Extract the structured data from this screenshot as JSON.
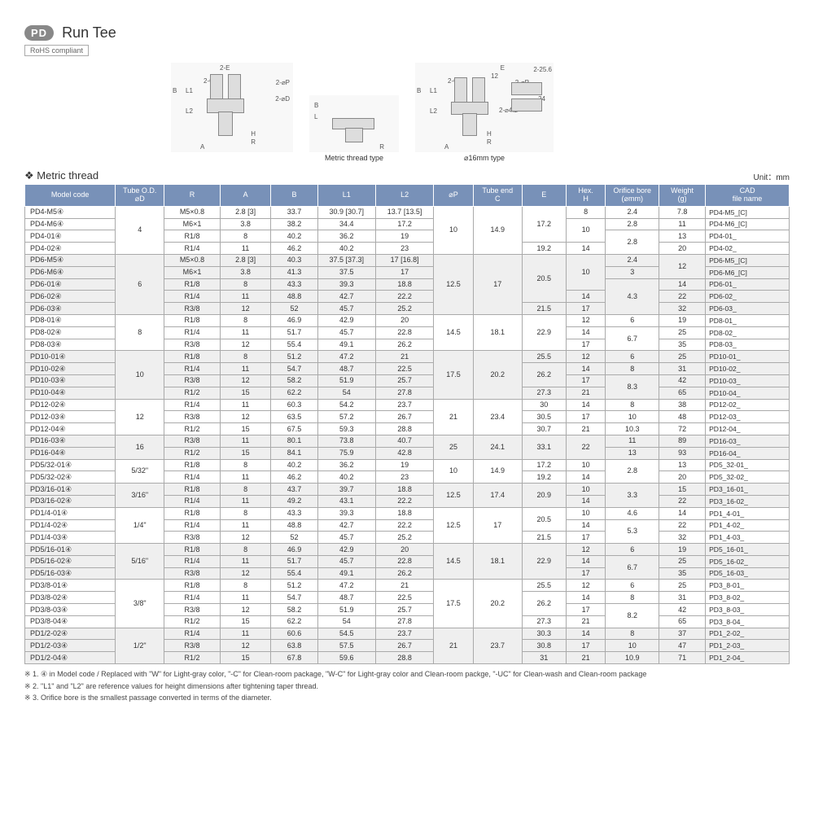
{
  "header": {
    "badge": "PD",
    "title": "Run Tee",
    "rohs": "RoHS compliant"
  },
  "diagram_labels": {
    "d1": "",
    "d2": "Metric thread type",
    "d3": "⌀16mm type"
  },
  "diagram_annot": {
    "a1": "2-E",
    "a2": "2-C",
    "a3": "2-⌀P",
    "a4": "2-⌀D",
    "a5": "B",
    "a6": "L1",
    "a7": "L2",
    "a8": "A",
    "a9": "H",
    "a10": "R",
    "a11": "L",
    "a12": "E",
    "a13": "12",
    "a14": "2-⌀4.2",
    "a15": "24",
    "a16": "2-25.6"
  },
  "section_title": "Metric thread",
  "unit_label": "Unit：mm",
  "columns": [
    "Model code",
    "Tube O.D.\n⌀D",
    "R",
    "A",
    "B",
    "L1",
    "L2",
    "⌀P",
    "Tube end\nC",
    "E",
    "Hex.\nH",
    "Orifice bore\n(⌀mm)",
    "Weight\n(g)",
    "CAD\nfile name"
  ],
  "col_widths": [
    "78",
    "42",
    "48",
    "44",
    "40",
    "50",
    "50",
    "34",
    "42",
    "38",
    "34",
    "46",
    "40",
    "72"
  ],
  "rows": [
    {
      "g": 0,
      "model": "PD4-M5④",
      "od": "4",
      "od_rs": 4,
      "r": "M5×0.8",
      "a": "2.8 [3]",
      "b": "33.7",
      "l1": "30.9 [30.7]",
      "l2": "13.7 [13.5]",
      "op": "10",
      "op_rs": 4,
      "c": "14.9",
      "c_rs": 4,
      "e": "17.2",
      "e_rs": 3,
      "h": "8",
      "ob": "2.4",
      "w": "7.8",
      "cad": "PD4-M5_[C]"
    },
    {
      "g": 0,
      "model": "PD4-M6④",
      "r": "M6×1",
      "a": "3.8",
      "b": "38.2",
      "l1": "34.4",
      "l2": "17.2",
      "h": "10",
      "h_rs": 2,
      "ob": "2.8",
      "w": "11",
      "cad": "PD4-M6_[C]"
    },
    {
      "g": 0,
      "model": "PD4-01④",
      "r": "R1/8",
      "a": "8",
      "b": "40.2",
      "l1": "36.2",
      "l2": "19",
      "ob": "2.8",
      "ob_rs": 2,
      "w": "13",
      "cad": "PD4-01_"
    },
    {
      "g": 0,
      "model": "PD4-02④",
      "r": "R1/4",
      "a": "11",
      "b": "46.2",
      "l1": "40.2",
      "l2": "23",
      "e": "19.2",
      "h": "14",
      "w": "20",
      "cad": "PD4-02_"
    },
    {
      "g": 1,
      "model": "PD6-M5④",
      "od": "6",
      "od_rs": 5,
      "r": "M5×0.8",
      "a": "2.8 [3]",
      "b": "40.3",
      "l1": "37.5 [37.3]",
      "l2": "17 [16.8]",
      "op": "12.5",
      "op_rs": 5,
      "c": "17",
      "c_rs": 5,
      "e": "20.5",
      "e_rs": 4,
      "h": "10",
      "h_rs": 3,
      "ob": "2.4",
      "w": "12",
      "w_rs": 2,
      "cad": "PD6-M5_[C]"
    },
    {
      "g": 1,
      "model": "PD6-M6④",
      "r": "M6×1",
      "a": "3.8",
      "b": "41.3",
      "l1": "37.5",
      "l2": "17",
      "ob": "3",
      "cad": "PD6-M6_[C]"
    },
    {
      "g": 1,
      "model": "PD6-01④",
      "r": "R1/8",
      "a": "8",
      "b": "43.3",
      "l1": "39.3",
      "l2": "18.8",
      "ob": "4.3",
      "ob_rs": 3,
      "w": "14",
      "cad": "PD6-01_"
    },
    {
      "g": 1,
      "model": "PD6-02④",
      "r": "R1/4",
      "a": "11",
      "b": "48.8",
      "l1": "42.7",
      "l2": "22.2",
      "h": "14",
      "w": "22",
      "cad": "PD6-02_"
    },
    {
      "g": 1,
      "model": "PD6-03④",
      "r": "R3/8",
      "a": "12",
      "b": "52",
      "l1": "45.7",
      "l2": "25.2",
      "e": "21.5",
      "h": "17",
      "w": "32",
      "cad": "PD6-03_"
    },
    {
      "g": 0,
      "model": "PD8-01④",
      "od": "8",
      "od_rs": 3,
      "r": "R1/8",
      "a": "8",
      "b": "46.9",
      "l1": "42.9",
      "l2": "20",
      "op": "14.5",
      "op_rs": 3,
      "c": "18.1",
      "c_rs": 3,
      "e": "22.9",
      "e_rs": 3,
      "h": "12",
      "ob": "6",
      "w": "19",
      "cad": "PD8-01_"
    },
    {
      "g": 0,
      "model": "PD8-02④",
      "r": "R1/4",
      "a": "11",
      "b": "51.7",
      "l1": "45.7",
      "l2": "22.8",
      "h": "14",
      "ob": "6.7",
      "ob_rs": 2,
      "w": "25",
      "cad": "PD8-02_"
    },
    {
      "g": 0,
      "model": "PD8-03④",
      "r": "R3/8",
      "a": "12",
      "b": "55.4",
      "l1": "49.1",
      "l2": "26.2",
      "h": "17",
      "w": "35",
      "cad": "PD8-03_"
    },
    {
      "g": 1,
      "model": "PD10-01④",
      "od": "10",
      "od_rs": 4,
      "r": "R1/8",
      "a": "8",
      "b": "51.2",
      "l1": "47.2",
      "l2": "21",
      "op": "17.5",
      "op_rs": 4,
      "c": "20.2",
      "c_rs": 4,
      "e": "25.5",
      "h": "12",
      "ob": "6",
      "w": "25",
      "cad": "PD10-01_"
    },
    {
      "g": 1,
      "model": "PD10-02④",
      "r": "R1/4",
      "a": "11",
      "b": "54.7",
      "l1": "48.7",
      "l2": "22.5",
      "e": "26.2",
      "e_rs": 2,
      "h": "14",
      "ob": "8",
      "w": "31",
      "cad": "PD10-02_"
    },
    {
      "g": 1,
      "model": "PD10-03④",
      "r": "R3/8",
      "a": "12",
      "b": "58.2",
      "l1": "51.9",
      "l2": "25.7",
      "h": "17",
      "ob": "8.3",
      "ob_rs": 2,
      "w": "42",
      "cad": "PD10-03_"
    },
    {
      "g": 1,
      "model": "PD10-04④",
      "r": "R1/2",
      "a": "15",
      "b": "62.2",
      "l1": "54",
      "l2": "27.8",
      "e": "27.3",
      "h": "21",
      "w": "65",
      "cad": "PD10-04_"
    },
    {
      "g": 0,
      "model": "PD12-02④",
      "od": "12",
      "od_rs": 3,
      "r": "R1/4",
      "a": "11",
      "b": "60.3",
      "l1": "54.2",
      "l2": "23.7",
      "op": "21",
      "op_rs": 3,
      "c": "23.4",
      "c_rs": 3,
      "e": "30",
      "h": "14",
      "ob": "8",
      "w": "38",
      "cad": "PD12-02_"
    },
    {
      "g": 0,
      "model": "PD12-03④",
      "r": "R3/8",
      "a": "12",
      "b": "63.5",
      "l1": "57.2",
      "l2": "26.7",
      "e": "30.5",
      "h": "17",
      "ob": "10",
      "w": "48",
      "cad": "PD12-03_"
    },
    {
      "g": 0,
      "model": "PD12-04④",
      "r": "R1/2",
      "a": "15",
      "b": "67.5",
      "l1": "59.3",
      "l2": "28.8",
      "e": "30.7",
      "h": "21",
      "ob": "10.3",
      "w": "72",
      "cad": "PD12-04_"
    },
    {
      "g": 1,
      "model": "PD16-03④",
      "od": "16",
      "od_rs": 2,
      "r": "R3/8",
      "a": "11",
      "b": "80.1",
      "l1": "73.8",
      "l2": "40.7",
      "op": "25",
      "op_rs": 2,
      "c": "24.1",
      "c_rs": 2,
      "e": "33.1",
      "e_rs": 2,
      "h": "22",
      "h_rs": 2,
      "ob": "11",
      "w": "89",
      "cad": "PD16-03_"
    },
    {
      "g": 1,
      "model": "PD16-04④",
      "r": "R1/2",
      "a": "15",
      "b": "84.1",
      "l1": "75.9",
      "l2": "42.8",
      "ob": "13",
      "w": "93",
      "cad": "PD16-04_"
    },
    {
      "g": 0,
      "model": "PD5/32-01④",
      "od": "5/32\"",
      "od_rs": 2,
      "r": "R1/8",
      "a": "8",
      "b": "40.2",
      "l1": "36.2",
      "l2": "19",
      "op": "10",
      "op_rs": 2,
      "c": "14.9",
      "c_rs": 2,
      "e": "17.2",
      "h": "10",
      "ob": "2.8",
      "ob_rs": 2,
      "w": "13",
      "cad": "PD5_32-01_"
    },
    {
      "g": 0,
      "model": "PD5/32-02④",
      "r": "R1/4",
      "a": "11",
      "b": "46.2",
      "l1": "40.2",
      "l2": "23",
      "e": "19.2",
      "h": "14",
      "w": "20",
      "cad": "PD5_32-02_"
    },
    {
      "g": 1,
      "model": "PD3/16-01④",
      "od": "3/16\"",
      "od_rs": 2,
      "r": "R1/8",
      "a": "8",
      "b": "43.7",
      "l1": "39.7",
      "l2": "18.8",
      "op": "12.5",
      "op_rs": 2,
      "c": "17.4",
      "c_rs": 2,
      "e": "20.9",
      "e_rs": 2,
      "h": "10",
      "ob": "3.3",
      "ob_rs": 2,
      "w": "15",
      "cad": "PD3_16-01_"
    },
    {
      "g": 1,
      "model": "PD3/16-02④",
      "r": "R1/4",
      "a": "11",
      "b": "49.2",
      "l1": "43.1",
      "l2": "22.2",
      "h": "14",
      "w": "22",
      "cad": "PD3_16-02_"
    },
    {
      "g": 0,
      "model": "PD1/4-01④",
      "od": "1/4\"",
      "od_rs": 3,
      "r": "R1/8",
      "a": "8",
      "b": "43.3",
      "l1": "39.3",
      "l2": "18.8",
      "op": "12.5",
      "op_rs": 3,
      "c": "17",
      "c_rs": 3,
      "e": "20.5",
      "e_rs": 2,
      "h": "10",
      "ob": "4.6",
      "w": "14",
      "cad": "PD1_4-01_"
    },
    {
      "g": 0,
      "model": "PD1/4-02④",
      "r": "R1/4",
      "a": "11",
      "b": "48.8",
      "l1": "42.7",
      "l2": "22.2",
      "h": "14",
      "ob": "5.3",
      "ob_rs": 2,
      "w": "22",
      "cad": "PD1_4-02_"
    },
    {
      "g": 0,
      "model": "PD1/4-03④",
      "r": "R3/8",
      "a": "12",
      "b": "52",
      "l1": "45.7",
      "l2": "25.2",
      "e": "21.5",
      "h": "17",
      "w": "32",
      "cad": "PD1_4-03_"
    },
    {
      "g": 1,
      "model": "PD5/16-01④",
      "od": "5/16\"",
      "od_rs": 3,
      "r": "R1/8",
      "a": "8",
      "b": "46.9",
      "l1": "42.9",
      "l2": "20",
      "op": "14.5",
      "op_rs": 3,
      "c": "18.1",
      "c_rs": 3,
      "e": "22.9",
      "e_rs": 3,
      "h": "12",
      "ob": "6",
      "w": "19",
      "cad": "PD5_16-01_"
    },
    {
      "g": 1,
      "model": "PD5/16-02④",
      "r": "R1/4",
      "a": "11",
      "b": "51.7",
      "l1": "45.7",
      "l2": "22.8",
      "h": "14",
      "ob": "6.7",
      "ob_rs": 2,
      "w": "25",
      "cad": "PD5_16-02_"
    },
    {
      "g": 1,
      "model": "PD5/16-03④",
      "r": "R3/8",
      "a": "12",
      "b": "55.4",
      "l1": "49.1",
      "l2": "26.2",
      "h": "17",
      "w": "35",
      "cad": "PD5_16-03_"
    },
    {
      "g": 0,
      "model": "PD3/8-01④",
      "od": "3/8\"",
      "od_rs": 4,
      "r": "R1/8",
      "a": "8",
      "b": "51.2",
      "l1": "47.2",
      "l2": "21",
      "op": "17.5",
      "op_rs": 4,
      "c": "20.2",
      "c_rs": 4,
      "e": "25.5",
      "h": "12",
      "ob": "6",
      "w": "25",
      "cad": "PD3_8-01_"
    },
    {
      "g": 0,
      "model": "PD3/8-02④",
      "r": "R1/4",
      "a": "11",
      "b": "54.7",
      "l1": "48.7",
      "l2": "22.5",
      "e": "26.2",
      "e_rs": 2,
      "h": "14",
      "ob": "8",
      "w": "31",
      "cad": "PD3_8-02_"
    },
    {
      "g": 0,
      "model": "PD3/8-03④",
      "r": "R3/8",
      "a": "12",
      "b": "58.2",
      "l1": "51.9",
      "l2": "25.7",
      "h": "17",
      "ob": "8.2",
      "ob_rs": 2,
      "w": "42",
      "cad": "PD3_8-03_"
    },
    {
      "g": 0,
      "model": "PD3/8-04④",
      "r": "R1/2",
      "a": "15",
      "b": "62.2",
      "l1": "54",
      "l2": "27.8",
      "e": "27.3",
      "h": "21",
      "w": "65",
      "cad": "PD3_8-04_"
    },
    {
      "g": 1,
      "model": "PD1/2-02④",
      "od": "1/2\"",
      "od_rs": 3,
      "r": "R1/4",
      "a": "11",
      "b": "60.6",
      "l1": "54.5",
      "l2": "23.7",
      "op": "21",
      "op_rs": 3,
      "c": "23.7",
      "c_rs": 3,
      "e": "30.3",
      "h": "14",
      "ob": "8",
      "w": "37",
      "cad": "PD1_2-02_"
    },
    {
      "g": 1,
      "model": "PD1/2-03④",
      "r": "R3/8",
      "a": "12",
      "b": "63.8",
      "l1": "57.5",
      "l2": "26.7",
      "e": "30.8",
      "h": "17",
      "ob": "10",
      "w": "47",
      "cad": "PD1_2-03_"
    },
    {
      "g": 1,
      "model": "PD1/2-04④",
      "r": "R1/2",
      "a": "15",
      "b": "67.8",
      "l1": "59.6",
      "l2": "28.8",
      "e": "31",
      "h": "21",
      "ob": "10.9",
      "w": "71",
      "cad": "PD1_2-04_"
    }
  ],
  "notes": [
    "※ 1. ④ in Model code / Replaced with \"W\" for Light-gray color, \"-C\" for Clean-room package, \"W-C\" for Light-gray color and Clean-room packge, \"-UC\" for Clean-wash and Clean-room package",
    "※ 2. \"L1\" and \"L2\" are reference values for height dimensions after tightening taper thread.",
    "※ 3. Orifice bore is the smallest passage converted in terms of the diameter."
  ]
}
